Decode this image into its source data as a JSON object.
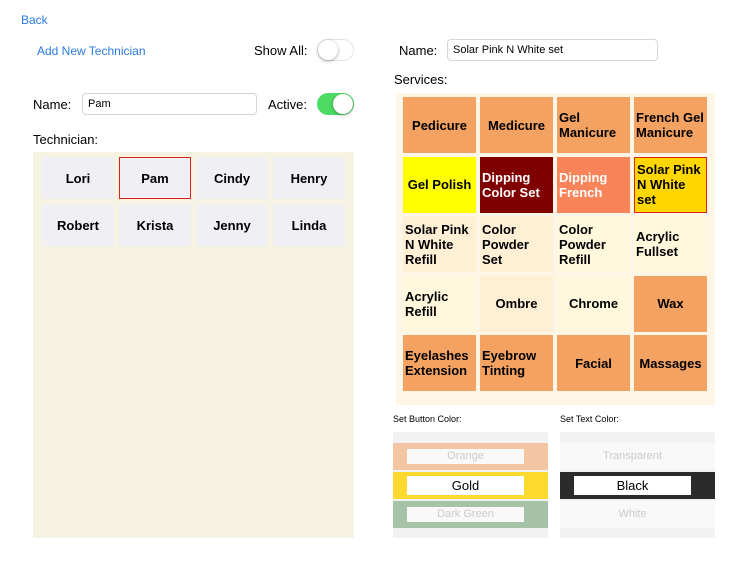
{
  "nav": {
    "back": "Back"
  },
  "technicians": {
    "add_new": "Add New Technician",
    "show_all_label": "Show All:",
    "show_all": false,
    "name_label": "Name:",
    "name_value": "Pam",
    "active_label": "Active:",
    "active": true,
    "list_label": "Technician:",
    "list": [
      "Lori",
      "Pam",
      "Cindy",
      "Henry",
      "Robert",
      "Krista",
      "Jenny",
      "Linda"
    ],
    "selected": 1
  },
  "service_editor": {
    "name_label": "Name:",
    "name_value": "Solar Pink N White set",
    "services_label": "Services:",
    "selected": 7,
    "services": [
      {
        "label": "Pedicure",
        "color": "#f4a261",
        "text_color": "#000000"
      },
      {
        "label": "Medicure",
        "color": "#f4a261",
        "text_color": "#000000"
      },
      {
        "label": "Gel Manicure",
        "color": "#f4a261",
        "text_color": "#000000"
      },
      {
        "label": "French Gel Manicure",
        "color": "#f4a261",
        "text_color": "#000000"
      },
      {
        "label": "Gel Polish",
        "color": "#ffff00",
        "text_color": "#000000"
      },
      {
        "label": "Dipping Color Set",
        "color": "#800000",
        "text_color": "#ffffff"
      },
      {
        "label": "Dipping French",
        "color": "#fa8459",
        "text_color": "#ffffff"
      },
      {
        "label": "Solar Pink N White set",
        "color": "#ffd700",
        "text_color": "#000000"
      },
      {
        "label": "Solar Pink N White Refill",
        "color": "#ffefd5",
        "text_color": "#000000"
      },
      {
        "label": "Color Powder Set",
        "color": "#ffefd5",
        "text_color": "#000000"
      },
      {
        "label": "Color Powder Refill",
        "color": "#fff8dc",
        "text_color": "#000000"
      },
      {
        "label": "Acrylic Fullset",
        "color": "#fff8dc",
        "text_color": "#000000"
      },
      {
        "label": "Acrylic Refill",
        "color": "#fff8dc",
        "text_color": "#000000"
      },
      {
        "label": "Ombre",
        "color": "#ffefd5",
        "text_color": "#000000"
      },
      {
        "label": "Chrome",
        "color": "#fff8dc",
        "text_color": "#000000"
      },
      {
        "label": "Wax",
        "color": "#f4a261",
        "text_color": "#000000"
      },
      {
        "label": "Eyelashes Extension",
        "color": "#f4a261",
        "text_color": "#000000"
      },
      {
        "label": "Eyebrow Tinting",
        "color": "#f4a261",
        "text_color": "#000000"
      },
      {
        "label": "Facial",
        "color": "#f4a261",
        "text_color": "#000000"
      },
      {
        "label": "Massages",
        "color": "#f4a261",
        "text_color": "#000000"
      }
    ]
  },
  "pickers": [
    {
      "label": "Set Button Color:",
      "options": [
        "Orange",
        "Gold",
        "Dark Green"
      ],
      "colors": [
        "#f4a261",
        "#fbd92e",
        "#6a9e6a"
      ],
      "selected": 1
    },
    {
      "label": "Set Text Color:",
      "options": [
        "Transparent",
        "Black",
        "White"
      ],
      "colors": [
        "#ffffff",
        "#2b2b2b",
        "#ffffff"
      ],
      "selected": 1
    }
  ]
}
